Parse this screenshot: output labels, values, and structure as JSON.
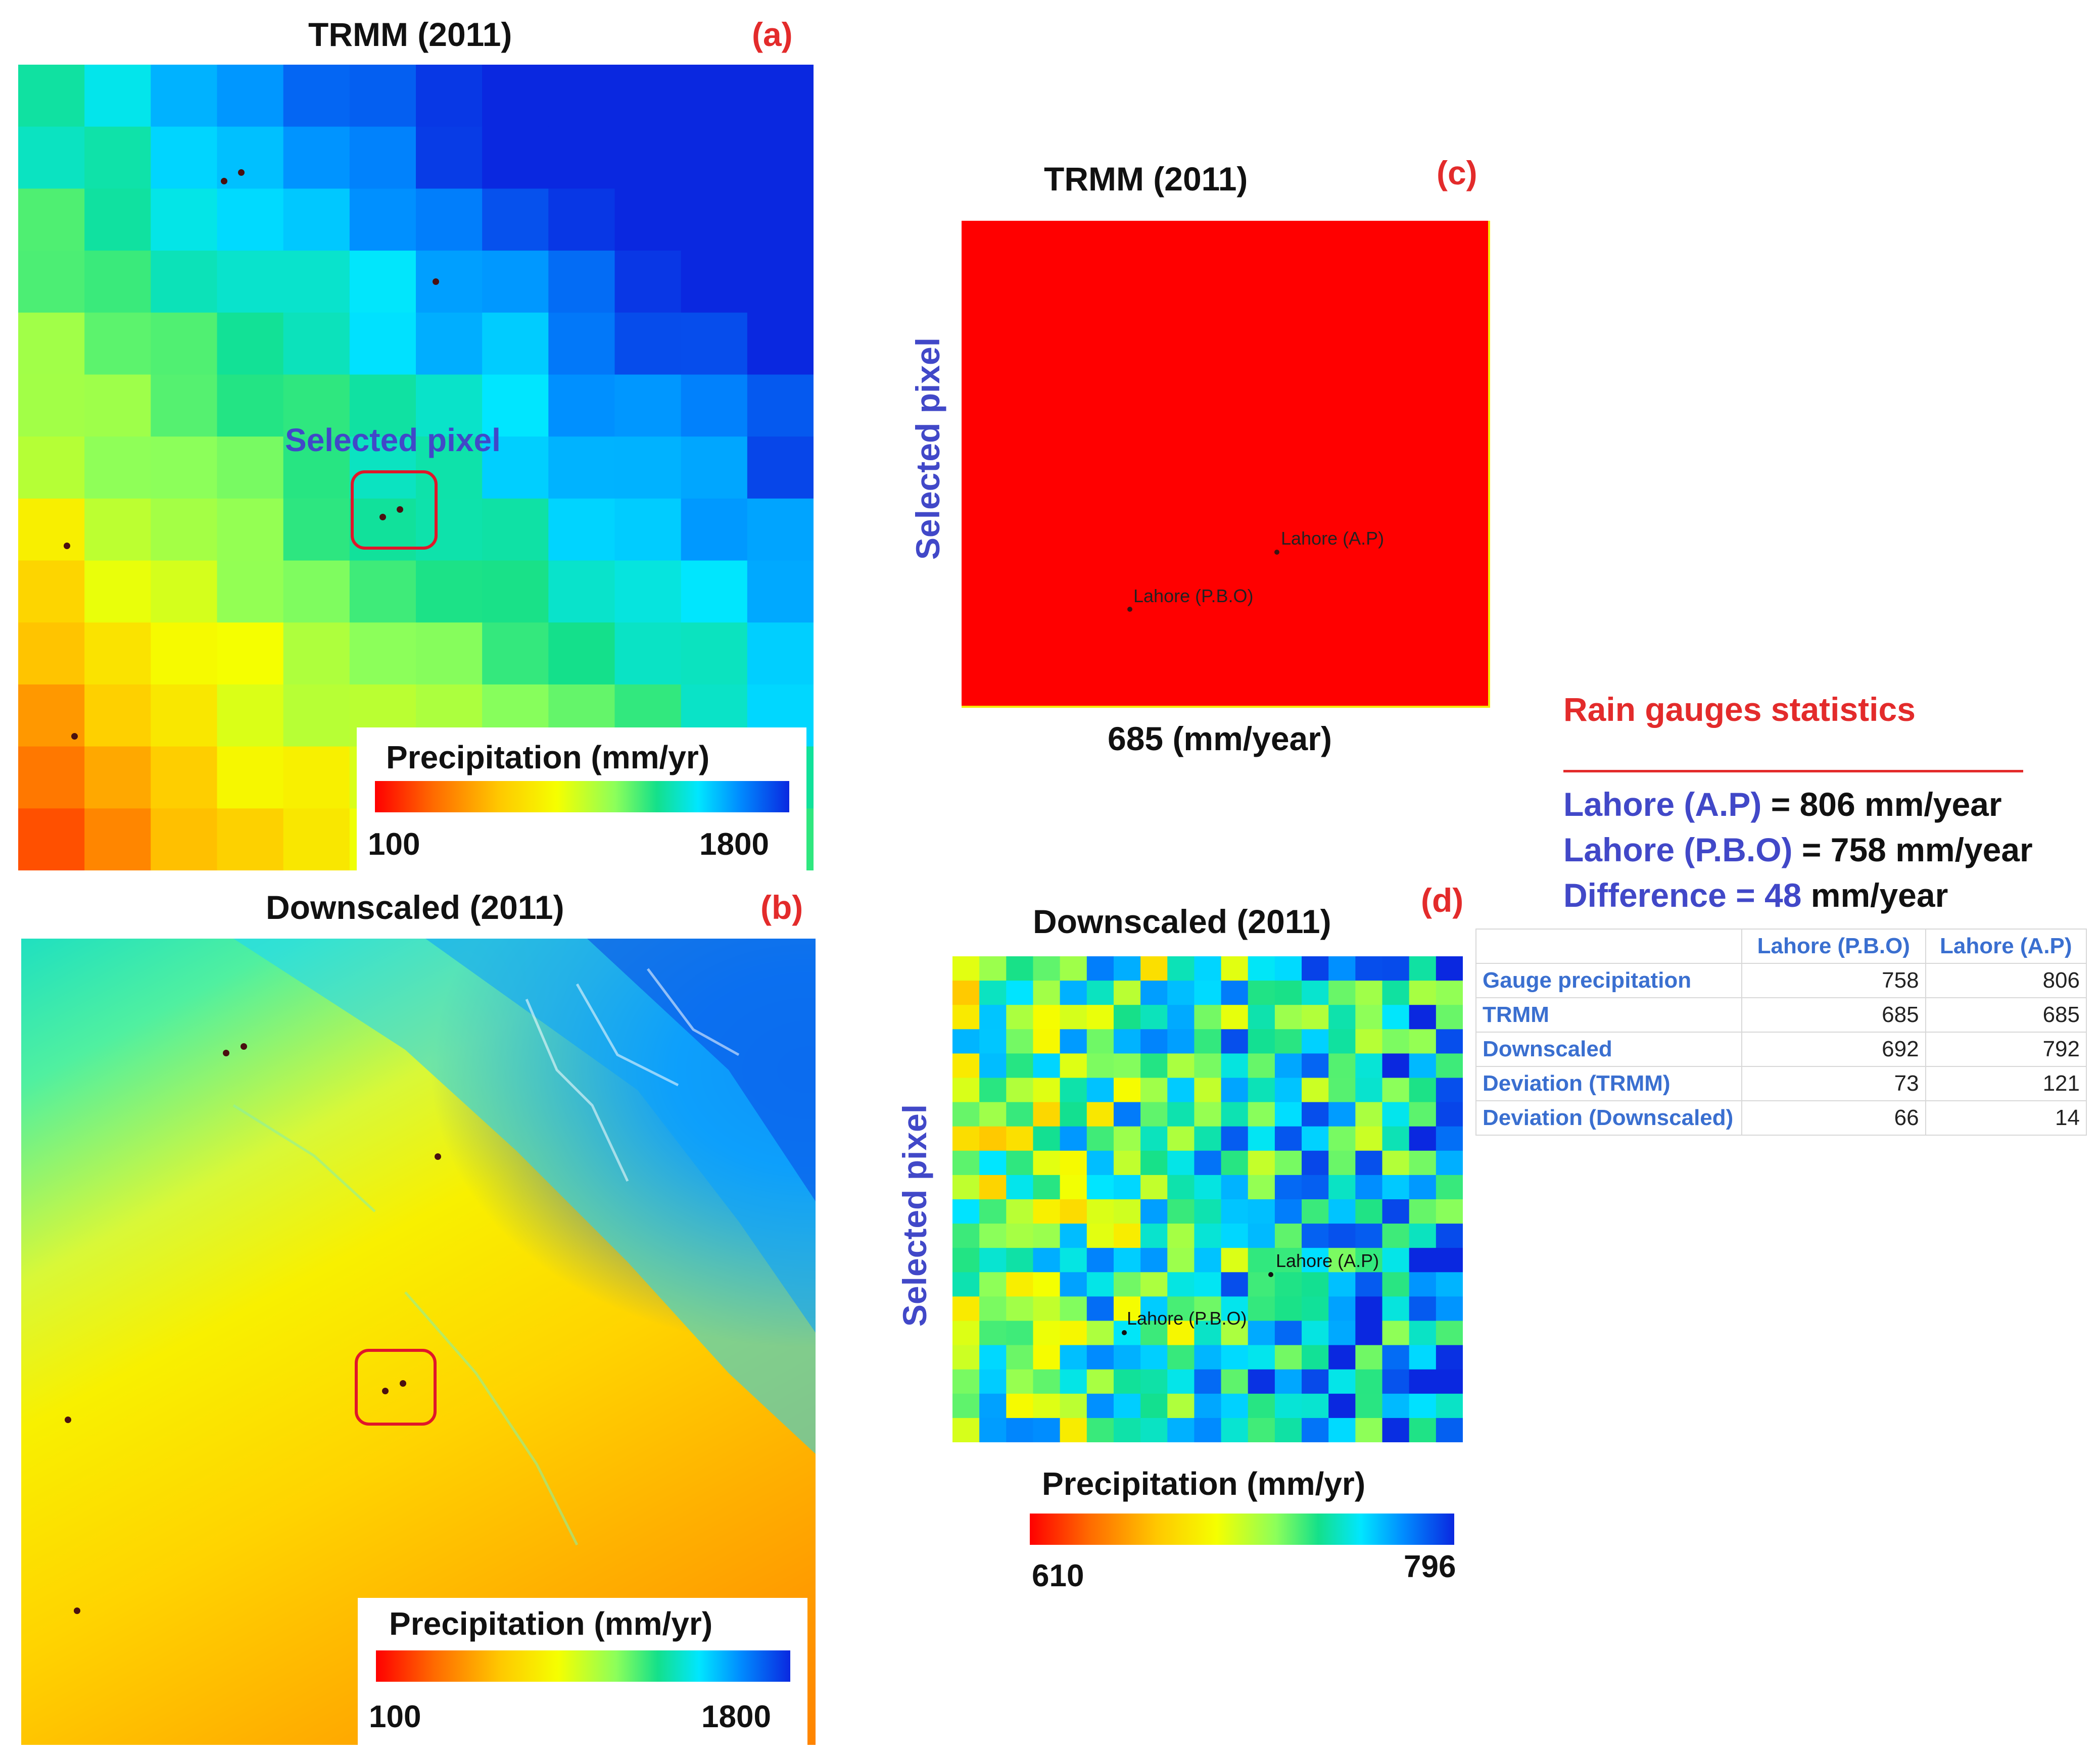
{
  "panels": {
    "a": {
      "title": "TRMM (2011)",
      "label": "(a)",
      "annotation": "Selected pixel",
      "legend": {
        "title": "Precipitation (mm/yr)",
        "min": "100",
        "max": "1800"
      }
    },
    "b": {
      "title": "Downscaled (2011)",
      "label": "(b)",
      "legend": {
        "title": "Precipitation (mm/yr)",
        "min": "100",
        "max": "1800"
      }
    },
    "c": {
      "title": "TRMM (2011)",
      "label": "(c)",
      "side_label": "Selected pixel",
      "pixel_value": "685 (mm/year)",
      "fill_color": "#ff0000",
      "gauge_ap": "Lahore (A.P)",
      "gauge_pbo": "Lahore (P.B.O)"
    },
    "d": {
      "title": "Downscaled (2011)",
      "label": "(d)",
      "side_label": "Selected pixel",
      "gauge_ap": "Lahore (A.P)",
      "gauge_pbo": "Lahore (P.B.O)",
      "legend": {
        "title": "Precipitation (mm/yr)",
        "min": "610",
        "max": "796"
      }
    }
  },
  "stats": {
    "title": "Rain gauges statistics",
    "lines": [
      {
        "name": "Lahore (A.P)",
        "rest": " = 806 mm/year"
      },
      {
        "name": "Lahore (P.B.O)",
        "rest": " = 758 mm/year"
      },
      {
        "name": "Difference = 48",
        "rest": " mm/year"
      }
    ],
    "table": {
      "headers": [
        "",
        "Lahore (P.B.O)",
        "Lahore (A.P)"
      ],
      "rows": [
        {
          "label": "Gauge precipitation",
          "pbo": "758",
          "ap": "806"
        },
        {
          "label": "TRMM",
          "pbo": "685",
          "ap": "685"
        },
        {
          "label": "Downscaled",
          "pbo": "692",
          "ap": "792"
        },
        {
          "label": "Deviation (TRMM)",
          "pbo": "73",
          "ap": "121"
        },
        {
          "label": "Deviation (Downscaled)",
          "pbo": "66",
          "ap": "14"
        }
      ]
    }
  },
  "colors": {
    "accent_red": "#e32b2b",
    "label_blue": "#4148c8",
    "table_blue": "#3a6fd0"
  }
}
